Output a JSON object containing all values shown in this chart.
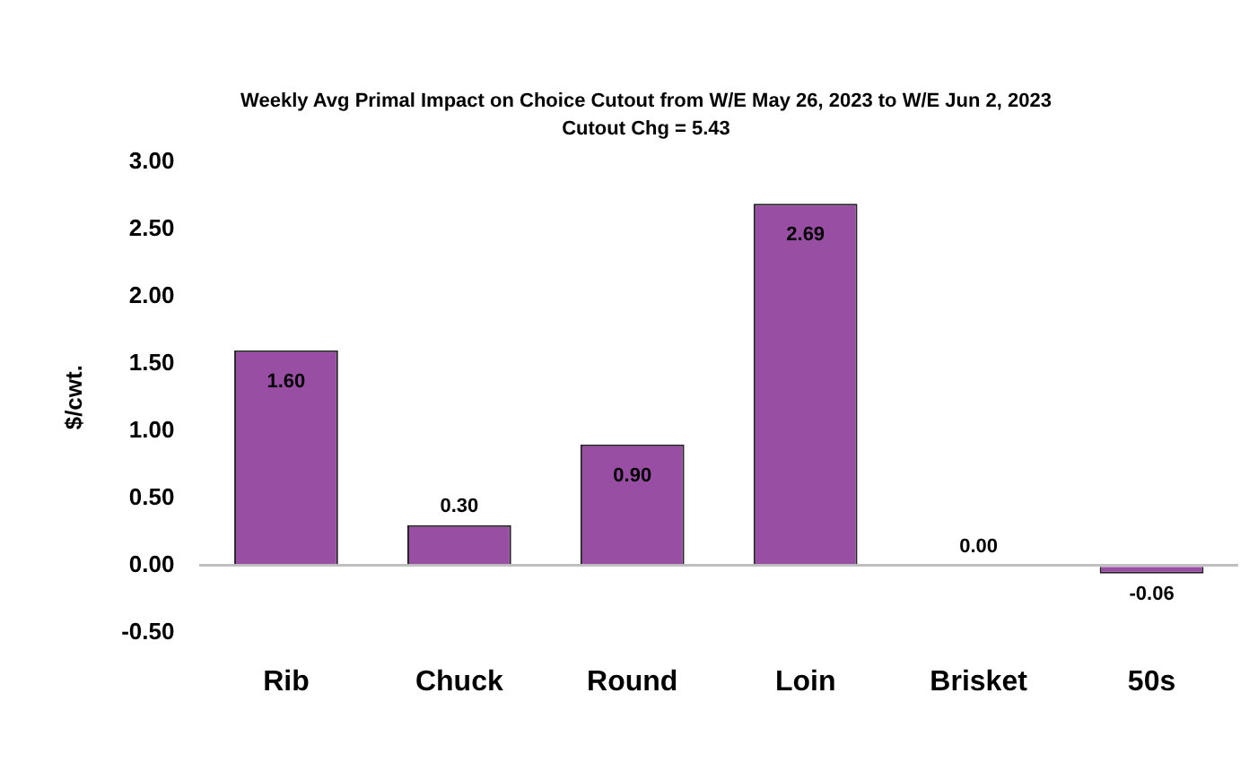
{
  "chart_data": {
    "type": "bar",
    "title": "Weekly Avg Primal Impact on Choice Cutout from W/E May 26, 2023 to W/E Jun 2, 2023",
    "subtitle": "Cutout Chg = 5.43",
    "ylabel": "$/cwt.",
    "categories": [
      "Rib",
      "Chuck",
      "Round",
      "Loin",
      "Brisket",
      "50s"
    ],
    "values": [
      1.6,
      0.3,
      0.9,
      2.69,
      0.0,
      -0.06
    ],
    "value_labels": [
      "1.60",
      "0.30",
      "0.90",
      "2.69",
      "0.00",
      "-0.06"
    ],
    "color": "#984ea3",
    "ylim": [
      -0.5,
      3
    ],
    "yticks": [
      {
        "value": -0.5,
        "label": "-0.50"
      },
      {
        "value": 0,
        "label": "0.00"
      },
      {
        "value": 0.5,
        "label": "0.50"
      },
      {
        "value": 1,
        "label": "1.00"
      },
      {
        "value": 1.5,
        "label": "1.50"
      },
      {
        "value": 2,
        "label": "2.00"
      },
      {
        "value": 2.5,
        "label": "2.50"
      },
      {
        "value": 3,
        "label": "3.00"
      }
    ],
    "legend": false
  }
}
